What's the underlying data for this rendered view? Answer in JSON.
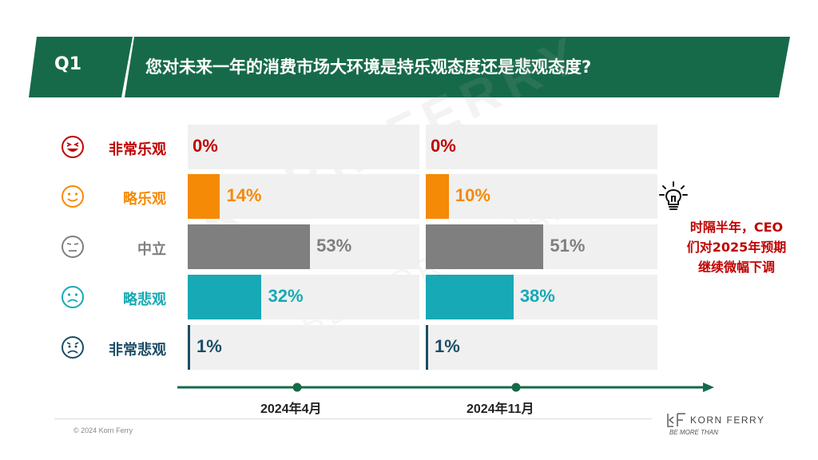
{
  "header": {
    "question_tag": "Q1",
    "title": "您对未来一年的消费市场大环境是持乐观态度还是悲观态度?"
  },
  "colors": {
    "header_green": "#166a4a",
    "very_optimistic": "#c00000",
    "slightly_optimistic": "#f58a07",
    "neutral": "#7f7f7f",
    "slightly_pessimistic": "#17a9b6",
    "very_pessimistic": "#1b4d66"
  },
  "chart_data": {
    "type": "bar",
    "orientation": "horizontal",
    "categories": [
      "非常乐观",
      "略乐观",
      "中立",
      "略悲观",
      "非常悲观"
    ],
    "category_icons": [
      "laughing-face-icon",
      "smiling-face-icon",
      "neutral-face-icon",
      "frowning-face-icon",
      "worried-face-icon"
    ],
    "series": [
      {
        "name": "2024年4月",
        "values": [
          0,
          14,
          53,
          32,
          1
        ]
      },
      {
        "name": "2024年11月",
        "values": [
          0,
          10,
          51,
          38,
          1
        ]
      }
    ],
    "value_labels": [
      [
        "0%",
        "14%",
        "53%",
        "32%",
        "1%"
      ],
      [
        "0%",
        "10%",
        "51%",
        "38%",
        "1%"
      ]
    ],
    "unit": "%",
    "xlim": [
      0,
      100
    ],
    "title": "",
    "xlabel": "",
    "ylabel": ""
  },
  "note": {
    "line1": "时隔半年，CEO",
    "line2": "们对2025年预期",
    "line3": "继续微幅下调",
    "icon": "lightbulb-icon"
  },
  "footer": {
    "copyright": "© 2024 Korn Ferry",
    "logo_name": "KORN FERRY",
    "logo_tagline": "BE MORE THAN"
  },
  "watermark": {
    "line1": "KORN FERRY",
    "line2": "BE MORE THAN"
  }
}
